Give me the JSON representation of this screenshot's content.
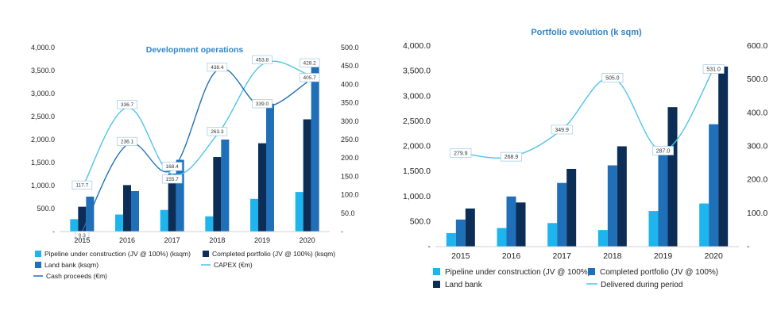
{
  "colors": {
    "pipeline": "#1EB4EE",
    "completed_dev": "#0B2D56",
    "land_bank_dev": "#1F6FB9",
    "completed_port": "#1F6FB9",
    "land_bank_port": "#0B2D56",
    "capex": "#4FC3EA",
    "cash": "#1F6FB9",
    "delivered": "#4FC3EA",
    "title": "#2E86C8"
  },
  "chart_data": [
    {
      "type": "bar",
      "title": "Development operations",
      "categories": [
        "2015",
        "2016",
        "2017",
        "2018",
        "2019",
        "2020"
      ],
      "ylim": [
        0,
        4000
      ],
      "y2lim": [
        0,
        500
      ],
      "y_ticks": [
        "-",
        "500.0",
        "1,000.0",
        "1,500.0",
        "2,000.0",
        "2,500.0",
        "3,000.0",
        "3,500.0",
        "4,000.0"
      ],
      "y2_ticks": [
        "-",
        "50.0",
        "100.0",
        "150.0",
        "200.0",
        "250.0",
        "300.0",
        "350.0",
        "400.0",
        "450.0",
        "500.0"
      ],
      "series": [
        {
          "name": "Pipeline under construction (JV @ 100%) (ksqm)",
          "type": "bar",
          "axis": "left",
          "values": [
            270,
            370,
            470,
            330,
            710,
            860
          ]
        },
        {
          "name": "Completed portfolio (JV @ 100%) (ksqm)",
          "type": "bar",
          "axis": "left",
          "values": [
            540,
            1010,
            1260,
            1620,
            1920,
            2440
          ]
        },
        {
          "name": "Land bank (ksqm)",
          "type": "bar",
          "axis": "left",
          "values": [
            760,
            880,
            1560,
            2000,
            2780,
            3590
          ]
        },
        {
          "name": "CAPEX (€m)",
          "type": "line",
          "axis": "right",
          "values": [
            117.7,
            336.7,
            155.7,
            263.3,
            453.8,
            428.2
          ]
        },
        {
          "name": "Cash proceeds (€m)",
          "type": "line",
          "axis": "right",
          "values": [
            0.3,
            236.1,
            168.4,
            438.4,
            339.0,
            405.7
          ]
        }
      ],
      "data_labels": {
        "CAPEX (€m)": [
          "117.7",
          "336.7",
          "155.7",
          "263.3",
          "453.8",
          "428.2"
        ],
        "Cash proceeds (€m)": [
          "0.3",
          "236.1",
          "168.4",
          "438.4",
          "339.0",
          "405.7"
        ]
      }
    },
    {
      "type": "bar",
      "title": "Portfolio evolution (k sqm)",
      "categories": [
        "2015",
        "2016",
        "2017",
        "2018",
        "2019",
        "2020"
      ],
      "ylim": [
        0,
        4000
      ],
      "y2lim": [
        0,
        600
      ],
      "y_ticks": [
        "-",
        "500.0",
        "1,000.0",
        "1,500.0",
        "2,000.0",
        "2,500.0",
        "3,000.0",
        "3,500.0",
        "4,000.0"
      ],
      "y2_ticks": [
        "-",
        "100.0",
        "200.0",
        "300.0",
        "400.0",
        "500.0",
        "600.0"
      ],
      "series": [
        {
          "name": "Pipeline under construction (JV @ 100%)",
          "type": "bar",
          "axis": "left",
          "values": [
            270,
            370,
            470,
            330,
            710,
            860
          ]
        },
        {
          "name": "Completed portfolio (JV @ 100%)",
          "type": "bar",
          "axis": "left",
          "values": [
            540,
            1000,
            1270,
            1620,
            1920,
            2440
          ]
        },
        {
          "name": "Land bank",
          "type": "bar",
          "axis": "left",
          "values": [
            760,
            880,
            1550,
            2000,
            2780,
            3590
          ]
        },
        {
          "name": "Delivered during period",
          "type": "line",
          "axis": "right",
          "values": [
            279.9,
            268.9,
            349.9,
            505.0,
            287.0,
            531.0
          ]
        }
      ],
      "data_labels": {
        "Delivered during period": [
          "279.9",
          "268.9",
          "349.9",
          "505.0",
          "287.0",
          "531.0"
        ]
      }
    }
  ]
}
